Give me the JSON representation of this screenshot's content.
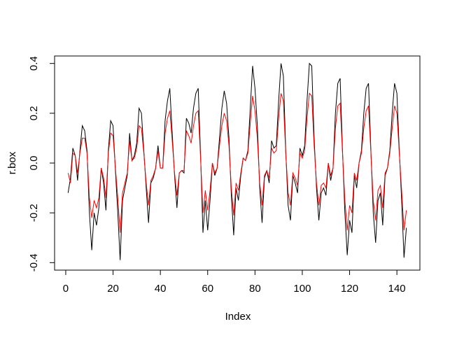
{
  "chart_data": {
    "type": "line",
    "x_label": "Index",
    "y_label": "r.box",
    "x": [
      1,
      2,
      3,
      4,
      5,
      6,
      7,
      8,
      9,
      10,
      11,
      12,
      13,
      14,
      15,
      16,
      17,
      18,
      19,
      20,
      21,
      22,
      23,
      24,
      25,
      26,
      27,
      28,
      29,
      30,
      31,
      32,
      33,
      34,
      35,
      36,
      37,
      38,
      39,
      40,
      41,
      42,
      43,
      44,
      45,
      46,
      47,
      48,
      49,
      50,
      51,
      52,
      53,
      54,
      55,
      56,
      57,
      58,
      59,
      60,
      61,
      62,
      63,
      64,
      65,
      66,
      67,
      68,
      69,
      70,
      71,
      72,
      73,
      74,
      75,
      76,
      77,
      78,
      79,
      80,
      81,
      82,
      83,
      84,
      85,
      86,
      87,
      88,
      89,
      90,
      91,
      92,
      93,
      94,
      95,
      96,
      97,
      98,
      99,
      100,
      101,
      102,
      103,
      104,
      105,
      106,
      107,
      108,
      109,
      110,
      111,
      112,
      113,
      114,
      115,
      116,
      117,
      118,
      119,
      120,
      121,
      122,
      123,
      124,
      125,
      126,
      127,
      128,
      129,
      130,
      131,
      132,
      133,
      134,
      135,
      136,
      137,
      138,
      139,
      140,
      141,
      142,
      143,
      144
    ],
    "series": [
      {
        "color": "#000000",
        "values": [
          -0.12,
          -0.06,
          0.06,
          0.03,
          -0.07,
          0.05,
          0.15,
          0.13,
          0.05,
          -0.2,
          -0.35,
          -0.2,
          -0.25,
          -0.18,
          -0.02,
          -0.08,
          -0.19,
          0.05,
          0.17,
          0.15,
          -0.03,
          -0.2,
          -0.39,
          -0.15,
          -0.1,
          -0.05,
          0.12,
          0.01,
          0.03,
          0.08,
          0.22,
          0.2,
          0.05,
          -0.1,
          -0.24,
          -0.08,
          -0.06,
          -0.02,
          0.07,
          -0.02,
          -0.02,
          0.17,
          0.25,
          0.3,
          0.12,
          -0.05,
          -0.18,
          -0.04,
          -0.03,
          -0.04,
          0.18,
          0.16,
          0.12,
          0.22,
          0.28,
          0.3,
          0.03,
          -0.28,
          -0.15,
          -0.27,
          -0.15,
          0.0,
          -0.05,
          -0.02,
          0.1,
          0.22,
          0.29,
          0.24,
          0.1,
          -0.13,
          -0.29,
          -0.1,
          -0.15,
          -0.05,
          0.02,
          0.01,
          0.05,
          0.22,
          0.39,
          0.3,
          0.15,
          -0.1,
          -0.24,
          -0.06,
          -0.03,
          -0.08,
          0.09,
          0.06,
          0.07,
          0.25,
          0.4,
          0.35,
          0.05,
          -0.17,
          -0.23,
          -0.05,
          -0.08,
          -0.12,
          0.06,
          0.03,
          0.07,
          0.25,
          0.4,
          0.39,
          0.1,
          -0.1,
          -0.23,
          -0.12,
          -0.1,
          -0.13,
          0.0,
          -0.07,
          -0.02,
          0.2,
          0.32,
          0.34,
          0.05,
          -0.2,
          -0.37,
          -0.23,
          -0.28,
          -0.05,
          -0.1,
          0.0,
          0.05,
          0.2,
          0.3,
          0.32,
          0.05,
          -0.2,
          -0.32,
          -0.15,
          -0.12,
          -0.25,
          -0.05,
          -0.02,
          0.05,
          0.2,
          0.32,
          0.28,
          0.05,
          -0.15,
          -0.38,
          -0.26
        ]
      },
      {
        "color": "#ff0000",
        "values": [
          -0.04,
          -0.08,
          0.04,
          0.03,
          -0.04,
          0.04,
          0.1,
          0.1,
          0.04,
          -0.14,
          -0.22,
          -0.15,
          -0.18,
          -0.14,
          -0.02,
          -0.06,
          -0.14,
          0.04,
          0.12,
          0.11,
          -0.02,
          -0.14,
          -0.28,
          -0.12,
          -0.08,
          -0.04,
          0.09,
          0.01,
          0.02,
          0.06,
          0.15,
          0.14,
          0.04,
          -0.08,
          -0.17,
          -0.07,
          -0.05,
          -0.02,
          0.05,
          -0.02,
          -0.02,
          0.12,
          0.18,
          0.21,
          0.09,
          -0.04,
          -0.13,
          -0.04,
          -0.03,
          -0.03,
          0.13,
          0.11,
          0.08,
          0.15,
          0.2,
          0.21,
          0.02,
          -0.2,
          -0.11,
          -0.19,
          -0.11,
          0.0,
          -0.04,
          -0.02,
          0.07,
          0.15,
          0.2,
          0.17,
          0.07,
          -0.1,
          -0.21,
          -0.08,
          -0.11,
          -0.04,
          0.02,
          0.01,
          0.04,
          0.16,
          0.27,
          0.21,
          0.1,
          -0.08,
          -0.17,
          -0.05,
          -0.03,
          -0.06,
          0.06,
          0.04,
          0.05,
          0.18,
          0.28,
          0.25,
          0.04,
          -0.12,
          -0.17,
          -0.04,
          -0.06,
          -0.09,
          0.04,
          0.02,
          0.05,
          0.18,
          0.28,
          0.27,
          0.07,
          -0.08,
          -0.17,
          -0.09,
          -0.08,
          -0.1,
          0.0,
          -0.05,
          -0.02,
          0.14,
          0.23,
          0.24,
          0.04,
          -0.15,
          -0.27,
          -0.17,
          -0.2,
          -0.04,
          -0.07,
          0.0,
          0.04,
          0.14,
          0.21,
          0.23,
          0.04,
          -0.15,
          -0.23,
          -0.11,
          -0.09,
          -0.18,
          -0.04,
          -0.02,
          0.04,
          0.14,
          0.23,
          0.2,
          0.04,
          -0.11,
          -0.27,
          -0.19
        ]
      }
    ],
    "xlim": [
      -4.72,
      149.72
    ],
    "xticks": [
      0,
      20,
      40,
      60,
      80,
      100,
      120,
      140
    ],
    "ylim": [
      -0.43,
      0.43
    ],
    "yticks": [
      -0.4,
      -0.2,
      {
        "value": 0,
        "label": "0.0"
      },
      0.2,
      0.4
    ]
  }
}
